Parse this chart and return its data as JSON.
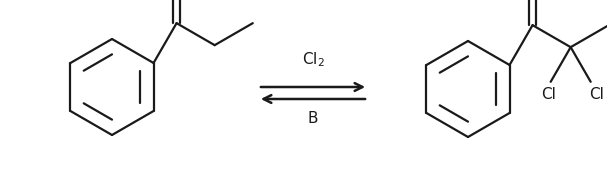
{
  "background_color": "#ffffff",
  "arrow_label_top": "Cl$_2$",
  "arrow_label_bottom": "B",
  "line_color": "#1a1a1a",
  "line_width": 1.6,
  "fig_width": 6.07,
  "fig_height": 1.92,
  "dpi": 100,
  "label_fontsize": 11,
  "o_fontsize": 12,
  "cl_fontsize": 11
}
